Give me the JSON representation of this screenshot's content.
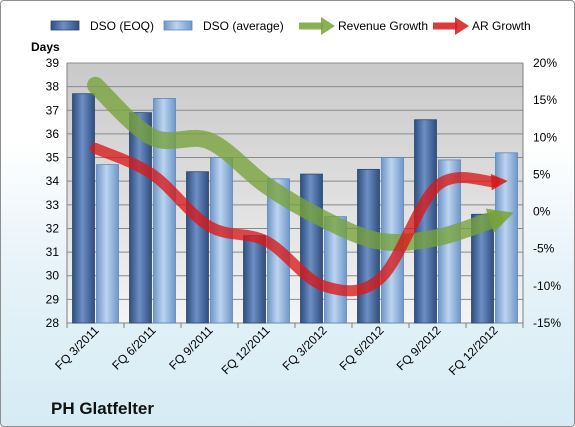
{
  "chart_data": {
    "type": "bar",
    "title": "PH Glatfelter",
    "ylabel": "Days",
    "ylim": [
      28,
      39
    ],
    "y2lim": [
      -15,
      20
    ],
    "yticks": [
      28,
      29,
      30,
      31,
      32,
      33,
      34,
      35,
      36,
      37,
      38,
      39
    ],
    "y2ticks": [
      "-15%",
      "-10%",
      "-5%",
      "0%",
      "5%",
      "10%",
      "15%",
      "20%"
    ],
    "categories": [
      "FQ 3/2011",
      "FQ 6/2011",
      "FQ 9/2011",
      "FQ 12/2011",
      "FQ 3/2012",
      "FQ 6/2012",
      "FQ 9/2012",
      "FQ 12/2012"
    ],
    "series": [
      {
        "name": "DSO (EOQ)",
        "kind": "bar",
        "axis": "left",
        "color": "#4a6ea5",
        "values": [
          37.7,
          36.9,
          34.4,
          31.7,
          34.3,
          34.5,
          36.6,
          32.6
        ]
      },
      {
        "name": "DSO (average)",
        "kind": "bar",
        "axis": "left",
        "color": "#8eb2dc",
        "values": [
          34.7,
          37.5,
          35.0,
          34.1,
          32.5,
          35.0,
          34.9,
          35.2
        ]
      },
      {
        "name": "Revenue Growth",
        "kind": "arrow-line",
        "axis": "right",
        "color": "#77a33a",
        "values": [
          17,
          10,
          9.5,
          3.5,
          -1,
          -4,
          -3.5,
          -1
        ]
      },
      {
        "name": "AR Growth",
        "kind": "arrow-line",
        "axis": "right",
        "color": "#d81818",
        "values": [
          8.5,
          5,
          -2,
          -4,
          -10,
          -9,
          3.5,
          4
        ]
      }
    ],
    "legend": "top",
    "grid": true
  }
}
